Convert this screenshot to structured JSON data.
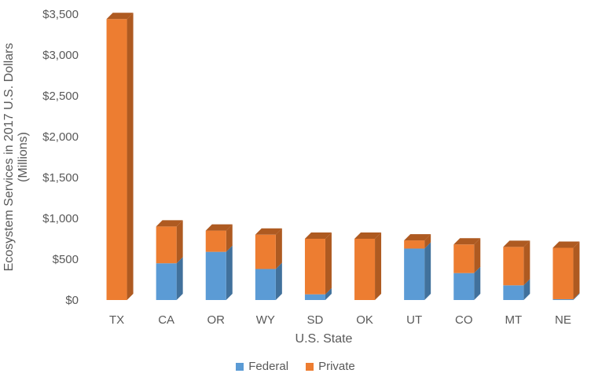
{
  "chart_data": {
    "type": "bar",
    "stacked": true,
    "style": "3d-column",
    "title": "",
    "xlabel": "U.S. State",
    "ylabel": "Ecosystem Services in 2017 U.S. Dollars",
    "ylabel2": "(Millions)",
    "categories": [
      "TX",
      "CA",
      "OR",
      "WY",
      "SD",
      "OK",
      "UT",
      "CO",
      "MT",
      "NE"
    ],
    "series": [
      {
        "name": "Federal",
        "color": "#5b9bd5",
        "side_color": "#41719c",
        "values": [
          0,
          450,
          590,
          380,
          70,
          0,
          630,
          330,
          180,
          10
        ]
      },
      {
        "name": "Private",
        "color": "#ed7d31",
        "side_color": "#ae5a21",
        "values": [
          3440,
          450,
          260,
          420,
          680,
          750,
          100,
          350,
          470,
          630
        ]
      }
    ],
    "ylim": [
      0,
      3500
    ],
    "yticks": [
      0,
      500,
      1000,
      1500,
      2000,
      2500,
      3000,
      3500
    ],
    "ytick_labels": [
      "$0",
      "$500",
      "$1,000",
      "$1,500",
      "$2,000",
      "$2,500",
      "$3,000",
      "$3,500"
    ],
    "grid": false,
    "legend_position": "bottom"
  }
}
